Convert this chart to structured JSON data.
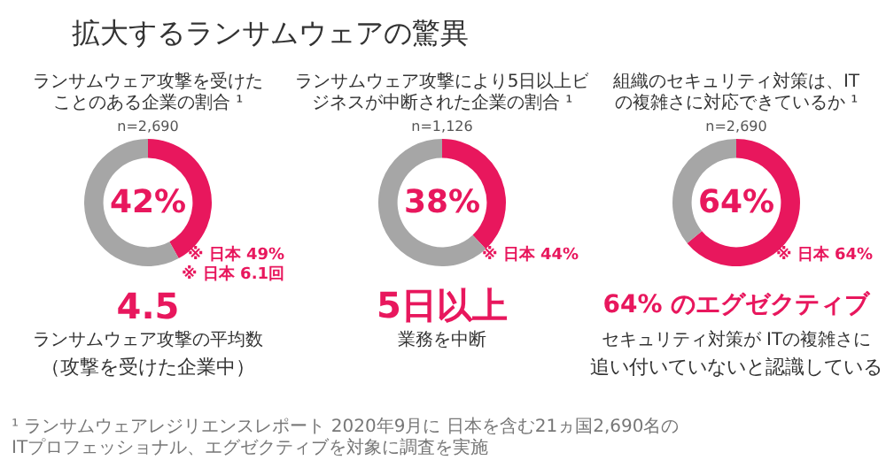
{
  "chart_data": [
    {
      "type": "other",
      "title": "拡大するランサムウェアの驚異",
      "annotations": [
        "¹ ランサムウェアレジリエンスレポート 2020年9月に 日本を含む21ヵ国2,690名の\nITプロフェッショナル、エグゼクティブを対象に調査を実施"
      ]
    },
    {
      "type": "donut",
      "title": "ランサムウェア攻撃を受けたことのある企業の割合 ¹",
      "subtitle": "n=2,690",
      "categories": [
        null,
        null
      ],
      "values": [
        42,
        58
      ],
      "colors": [
        "#e8175d",
        "#a6a6a6"
      ],
      "value_labels": [
        "42%",
        null
      ],
      "annotations": [
        "※ 日本 49%\n※ 日本 6.1回",
        "4.5",
        "ランサムウェア攻撃の平均数",
        "（攻撃を受けた企業中）"
      ]
    },
    {
      "type": "donut",
      "title": "ランサムウェア攻撃により5日以上ビジネスが中断された企業の割合 ¹",
      "subtitle": "n=1,126",
      "categories": [
        null,
        null
      ],
      "values": [
        38,
        62
      ],
      "colors": [
        "#e8175d",
        "#a6a6a6"
      ],
      "value_labels": [
        "38%",
        null
      ],
      "annotations": [
        "※ 日本 44%",
        "5日以上",
        "業務を中断"
      ]
    },
    {
      "type": "donut",
      "title": "組織のセキュリティ対策は、ITの複雑さに対応できているか ¹",
      "subtitle": "n=2,690",
      "categories": [
        null,
        null
      ],
      "values": [
        64,
        36
      ],
      "colors": [
        "#e8175d",
        "#a6a6a6"
      ],
      "value_labels": [
        "64%",
        null
      ],
      "annotations": [
        "※ 日本 64%",
        "64% のエグゼクティブ",
        "セキュリティ対策が ITの複雑さに",
        "追い付いていないと認識している"
      ]
    }
  ]
}
